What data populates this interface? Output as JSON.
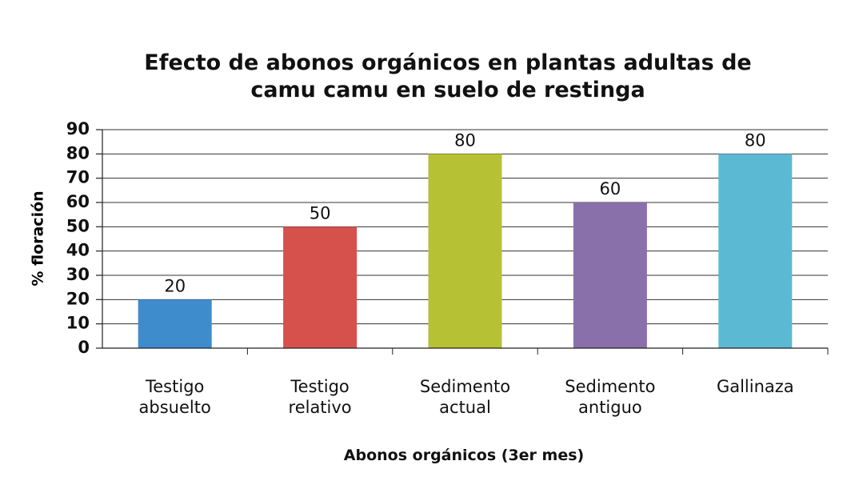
{
  "chart_data": {
    "type": "bar",
    "title": "Efecto de abonos orgánicos en plantas adultas de camu camu en suelo de restinga",
    "categories": [
      "Testigo absuelto",
      "Testigo relativo",
      "Sedimento actual",
      "Sedimento antiguo",
      "Gallinaza"
    ],
    "values": [
      20,
      50,
      80,
      60,
      80
    ],
    "colors": [
      "#3e8ccc",
      "#d6504c",
      "#b6c234",
      "#8a70ab",
      "#5cb9d3"
    ],
    "ylabel": "% floración",
    "xlabel": "Abonos orgánicos (3er mes)",
    "ylim": [
      0,
      90
    ],
    "yticks": [
      0,
      10,
      20,
      30,
      40,
      50,
      60,
      70,
      80,
      90
    ],
    "grid": true
  }
}
